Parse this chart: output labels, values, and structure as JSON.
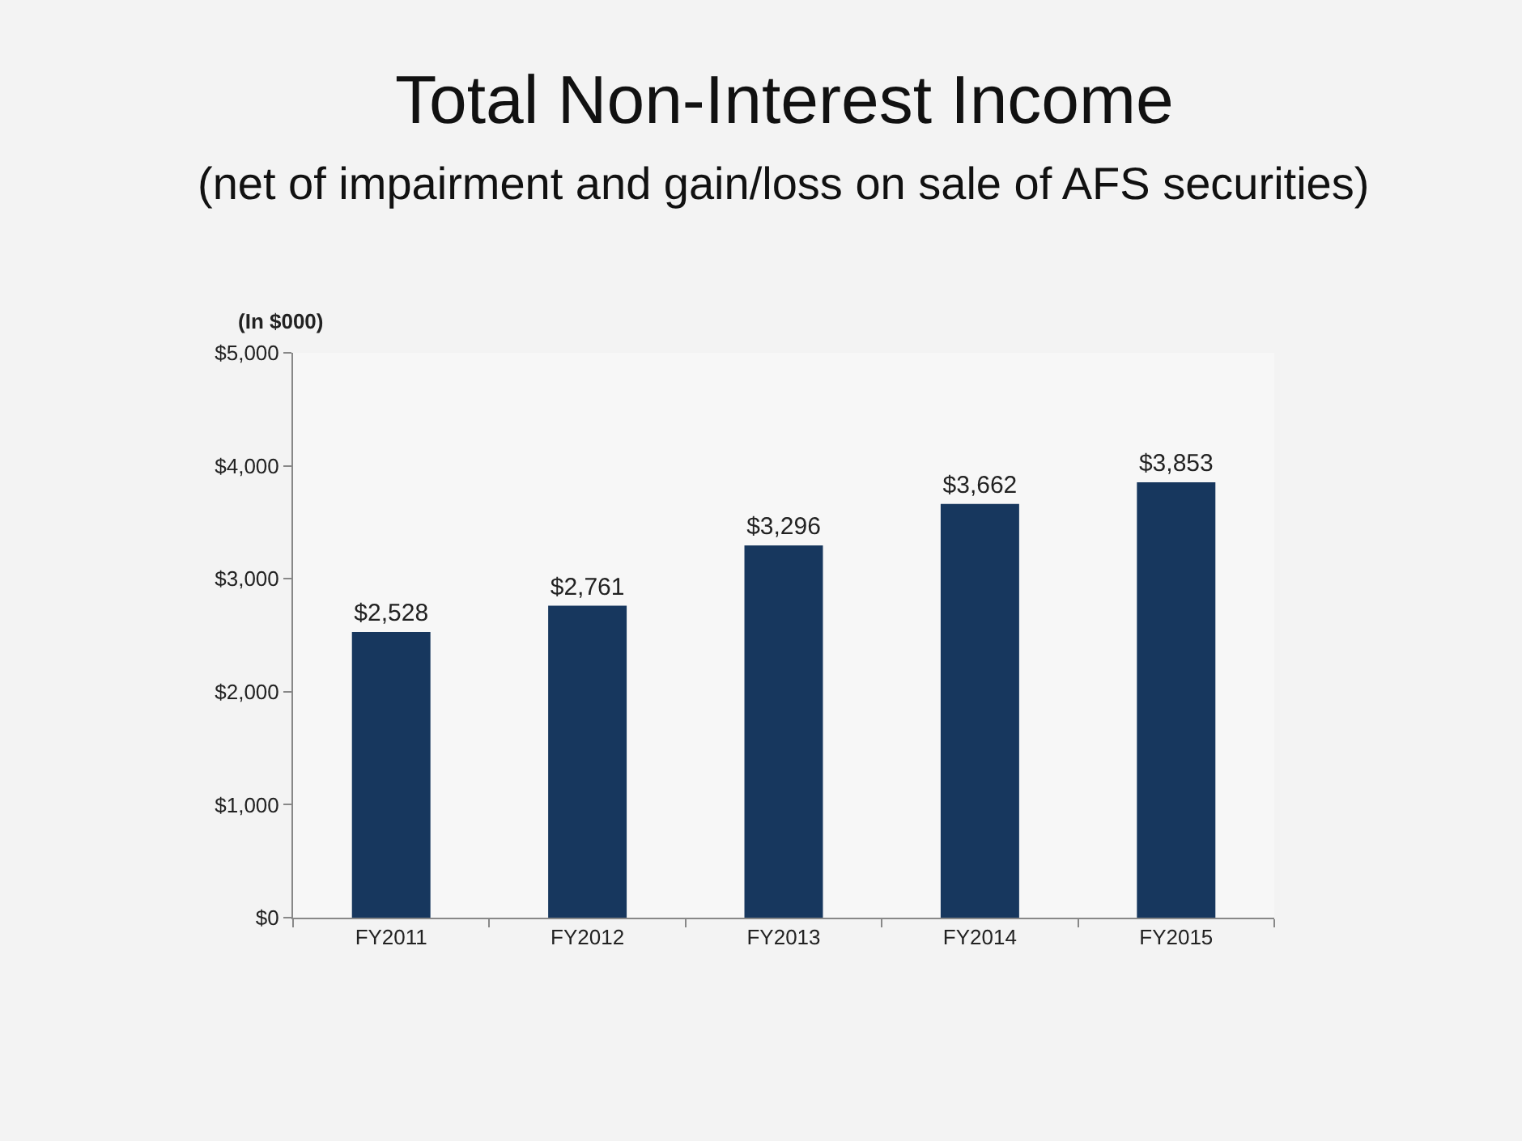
{
  "chart_data": {
    "type": "bar",
    "title": "Total Non-Interest Income",
    "subtitle": "(net of impairment and gain/loss on sale of AFS securities)",
    "ylabel": "(In $000)",
    "categories": [
      "FY2011",
      "FY2012",
      "FY2013",
      "FY2014",
      "FY2015"
    ],
    "values": [
      2528,
      2761,
      3296,
      3662,
      3853
    ],
    "color": "#17375e",
    "value_labels": [
      "$2,528",
      "$2,761",
      "$3,296",
      "$3,662",
      "$3,853"
    ],
    "ylim": [
      0,
      5000
    ],
    "yticks": [
      {
        "value": 0,
        "label": "$0"
      },
      {
        "value": 1000,
        "label": "$1,000"
      },
      {
        "value": 2000,
        "label": "$2,000"
      },
      {
        "value": 3000,
        "label": "$3,000"
      },
      {
        "value": 4000,
        "label": "$4,000"
      },
      {
        "value": 5000,
        "label": "$5,000"
      }
    ],
    "grid": false
  }
}
